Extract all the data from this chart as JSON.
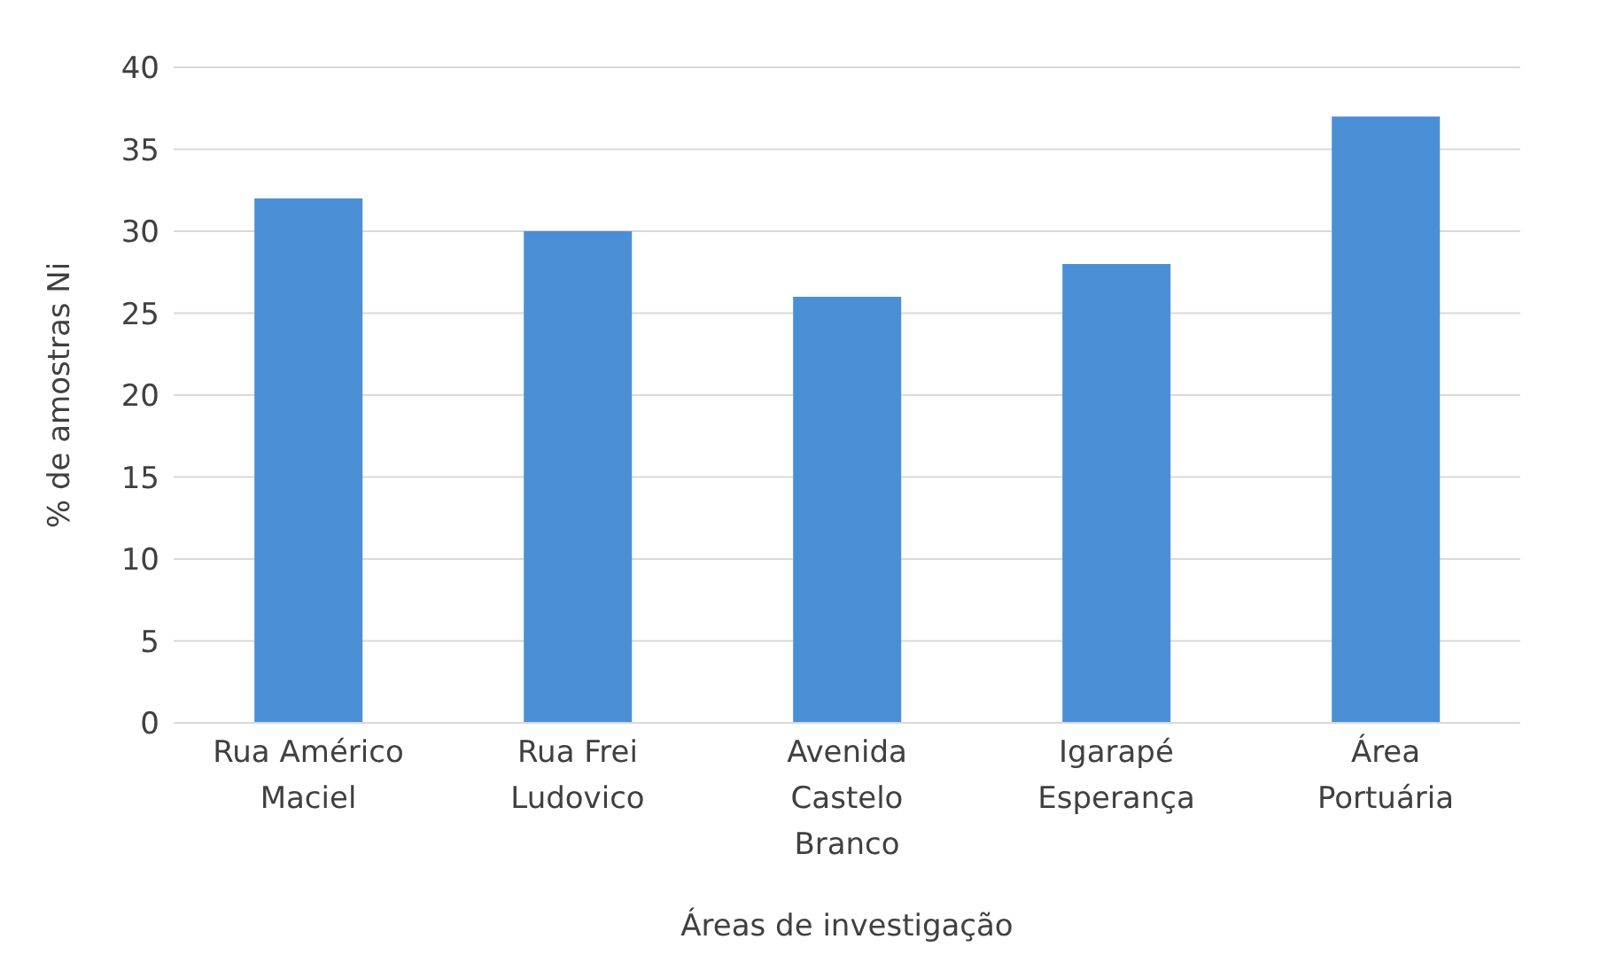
{
  "chart_data": {
    "type": "bar",
    "xlabel": "Áreas de investigação",
    "ylabel": "% de amostras Ni",
    "categories": [
      "Rua Américo Maciel",
      "Rua Frei Ludovico",
      "Avenida Castelo Branco",
      "Igarapé Esperança",
      "Área Portuária"
    ],
    "values": [
      32,
      30,
      26,
      28,
      37
    ],
    "color": "#4a8fd6",
    "ylim": [
      0,
      40
    ],
    "yticks": [
      0,
      5,
      10,
      15,
      20,
      25,
      30,
      35,
      40
    ],
    "grid": "y"
  }
}
